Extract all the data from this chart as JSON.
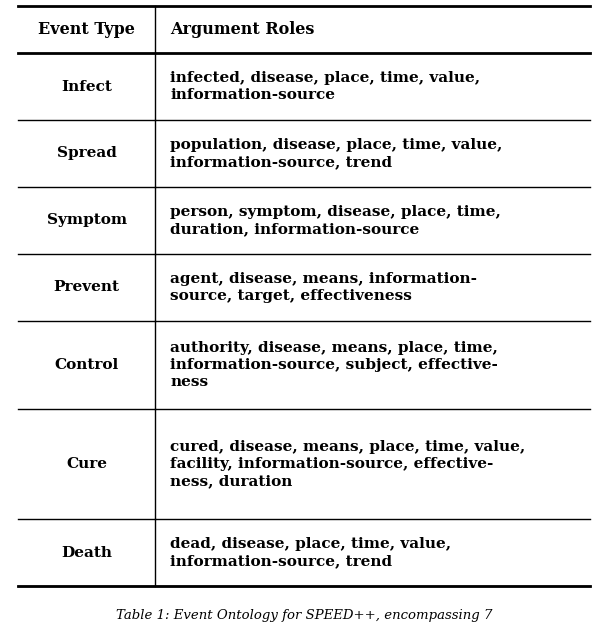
{
  "col_headers": [
    "Event Type",
    "Argument Roles"
  ],
  "rows": [
    {
      "event_type": "Infect",
      "argument_roles": "infected, disease, place, time, value,\ninformation-source",
      "n_lines": 2
    },
    {
      "event_type": "Spread",
      "argument_roles": "population, disease, place, time, value,\ninformation-source, trend",
      "n_lines": 2
    },
    {
      "event_type": "Symptom",
      "argument_roles": "person, symptom, disease, place, time,\nduration, information-source",
      "n_lines": 2
    },
    {
      "event_type": "Prevent",
      "argument_roles": "agent, disease, means, information-\nsource, target, effectiveness",
      "n_lines": 2
    },
    {
      "event_type": "Control",
      "argument_roles": "authority, disease, means, place, time,\ninformation-source, subject, effective-\nness",
      "n_lines": 3
    },
    {
      "event_type": "Cure",
      "argument_roles": "cured, disease, means, place, time, value,\nfacility, information-source, effective-\nness, duration",
      "n_lines": 4
    },
    {
      "event_type": "Death",
      "argument_roles": "dead, disease, place, time, value,\ninformation-source, trend",
      "n_lines": 2
    }
  ],
  "bg_color": "#ffffff",
  "line_color": "#000000",
  "header_fontsize": 11.5,
  "body_fontsize": 11.0,
  "caption_fontsize": 9.5,
  "figsize": [
    6.08,
    6.36
  ],
  "dpi": 100,
  "caption": "Table 1: Event Ontology for SPEED++, encompassing 7"
}
